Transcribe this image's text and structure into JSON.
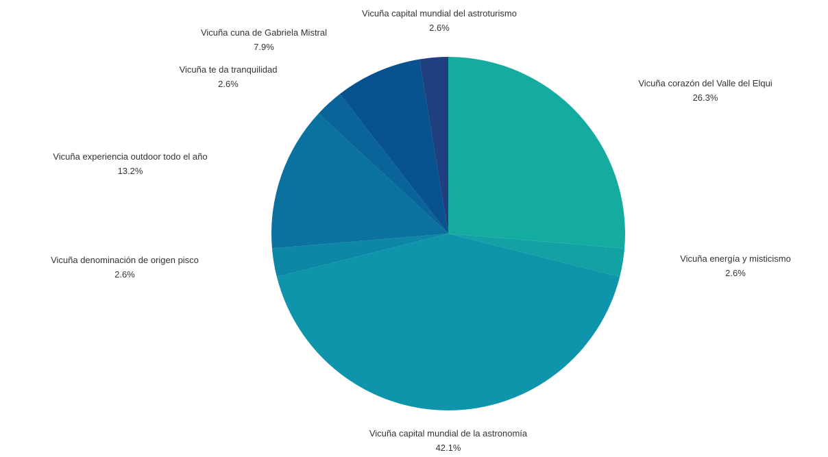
{
  "chart_data": {
    "type": "pie",
    "start": "top",
    "direction": "clockwise",
    "slices": [
      {
        "label": "Vicuña corazón del Valle del Elqui",
        "percent_label": "26.3%",
        "value": 26.3,
        "color": "#16aba1"
      },
      {
        "label": "Vicuña energía y misticismo",
        "percent_label": "2.6%",
        "value": 2.6,
        "color": "#13a2a4"
      },
      {
        "label": "Vicuña capital mundial de la astronomía",
        "percent_label": "42.1%",
        "value": 42.1,
        "color": "#0f95ab"
      },
      {
        "label": "Vicuña denominación de origen pisco",
        "percent_label": "2.6%",
        "value": 2.6,
        "color": "#0e86a6"
      },
      {
        "label": "Vicuña experiencia outdoor todo el año",
        "percent_label": "13.2%",
        "value": 13.2,
        "color": "#0b72a0"
      },
      {
        "label": "Vicuña te da tranquilidad",
        "percent_label": "2.6%",
        "value": 2.6,
        "color": "#0a6399"
      },
      {
        "label": "Vicuña cuna de Gabriela Mistral",
        "percent_label": "7.9%",
        "value": 7.9,
        "color": "#07528f"
      },
      {
        "label": "Vicuña capital mundial del astroturismo",
        "percent_label": "2.6%",
        "value": 2.6,
        "color": "#1f3f7e"
      }
    ]
  }
}
